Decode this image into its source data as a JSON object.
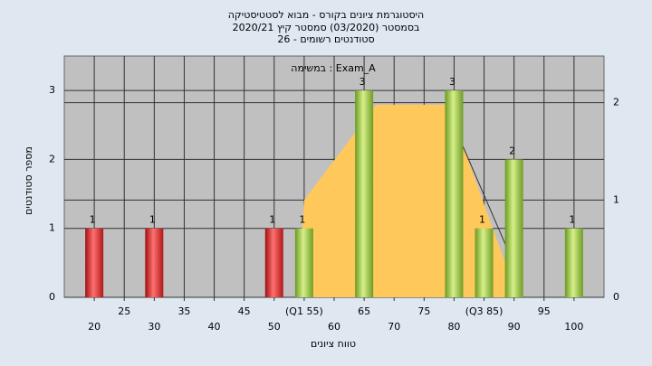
{
  "chart_data": {
    "type": "bar",
    "title_lines": [
      "היסטוגרמת ציונים בקורס - מבוא לסטטיסטיקה",
      "בסמסטר  (03/2020)  סמסטר קיץ  2020/21",
      "סטודנטים רשומים - 26"
    ],
    "annotation": "במשימה : Exam_A",
    "x_label": "טווח ציונים",
    "y_label": "מספר סטודנטים",
    "xlim": [
      15,
      105
    ],
    "xticks": [
      20,
      25,
      30,
      35,
      40,
      45,
      50,
      {
        "value": 55,
        "label": "(Q1 55)"
      },
      60,
      65,
      70,
      75,
      80,
      {
        "value": 85,
        "label": "(Q3 85)"
      },
      90,
      95,
      100
    ],
    "ylim": [
      0,
      3.5
    ],
    "yticks": [
      0,
      1,
      2,
      3
    ],
    "y2lim": [
      0,
      2.48
    ],
    "y2ticks": [
      0,
      1,
      2
    ],
    "grid": true,
    "series": [
      {
        "type": "area",
        "axis": "y2",
        "color": "#ffc85a",
        "x": [
          54,
          55,
          67,
          79,
          88.5
        ],
        "values": [
          0,
          1,
          1.98,
          1.98,
          0.36
        ]
      },
      {
        "type": "line",
        "axis": "y2",
        "color": "#333333",
        "x": [
          80,
          90
        ],
        "values": [
          1.76,
          0.34
        ]
      },
      {
        "type": "bar",
        "color": "#e02828",
        "x": [
          20,
          30,
          50
        ],
        "values": [
          1,
          1,
          1
        ]
      },
      {
        "type": "bar",
        "color": "#8fc23a",
        "x": [
          55,
          65,
          80,
          85,
          90,
          100
        ],
        "values": [
          1,
          3,
          3,
          1,
          2,
          1
        ]
      }
    ]
  }
}
